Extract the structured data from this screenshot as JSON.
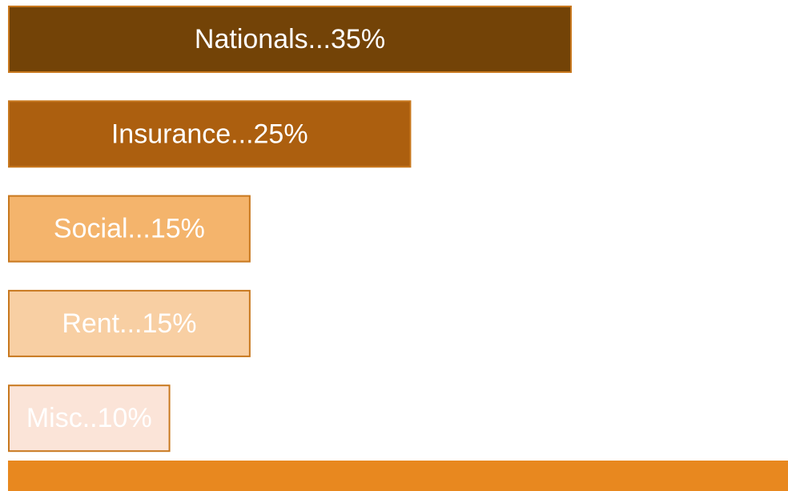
{
  "chart_data": {
    "type": "bar",
    "orientation": "horizontal",
    "values": [
      35,
      25,
      15,
      15,
      10
    ],
    "value_labels": [
      "Nationals...35%",
      "Insurance...25%",
      "Social...15%",
      "Rent...15%",
      "Misc..10%"
    ],
    "colors": [
      "#734307",
      "#ac5f0f",
      "#f4b46c",
      "#f8cfa3",
      "#fbe4d8"
    ]
  }
}
